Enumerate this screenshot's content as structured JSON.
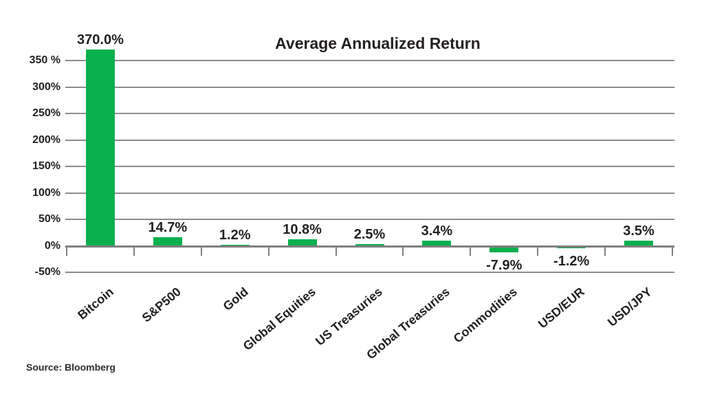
{
  "chart_data": {
    "type": "bar",
    "title": "Average Annualized Return",
    "source": "Source: Bloomberg",
    "categories": [
      "Bitcoin",
      "S&P500",
      "Gold",
      "Global Equities",
      "US Treasuries",
      "Global Treasuries",
      "Commodities",
      "USD/EUR",
      "USD/JPY"
    ],
    "values": [
      370.0,
      14.7,
      1.2,
      10.8,
      2.5,
      3.4,
      -7.9,
      -1.2,
      3.5
    ],
    "value_labels": [
      "370.0%",
      "14.7%",
      "1.2%",
      "10.8%",
      "2.5%",
      "3.4%",
      "-7.9%",
      "-1.2%",
      "3.5%"
    ],
    "y_axis": {
      "tick_labels": [
        "350 %",
        "300%",
        "250%",
        "200%",
        "150%",
        "100%",
        "50%",
        "0%",
        "-50%"
      ],
      "tick_values": [
        350,
        300,
        250,
        200,
        150,
        100,
        50,
        0,
        -50
      ],
      "ylim": [
        -50,
        370
      ],
      "grid": true
    },
    "legend": "none",
    "colors": {
      "bar": "#0ab04e",
      "gridline": "#8c8c8c",
      "axis": "#7f7f7f",
      "text": "#231f20"
    }
  }
}
